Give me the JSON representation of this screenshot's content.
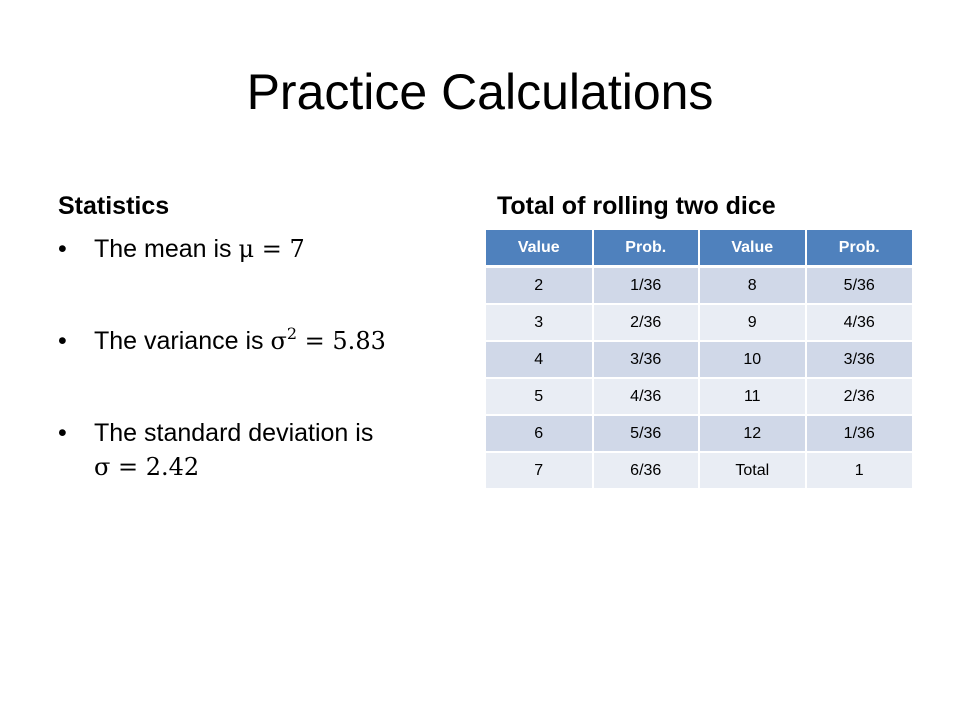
{
  "title": "Practice Calculations",
  "left": {
    "heading": "Statistics",
    "bullet_marker": "•",
    "bullets": [
      {
        "text": "The mean is ",
        "math": "μ = 7"
      },
      {
        "text": "The variance is ",
        "math_base": "σ",
        "math_sup": "2",
        "math_rest": " = 5.83"
      },
      {
        "text": "The standard deviation is",
        "math": "σ = 2.42"
      }
    ]
  },
  "right": {
    "heading": "Total of rolling two dice",
    "table": {
      "headers": [
        "Value",
        "Prob.",
        "Value",
        "Prob."
      ],
      "rows": [
        [
          "2",
          "1/36",
          "8",
          "5/36"
        ],
        [
          "3",
          "2/36",
          "9",
          "4/36"
        ],
        [
          "4",
          "3/36",
          "10",
          "3/36"
        ],
        [
          "5",
          "4/36",
          "11",
          "2/36"
        ],
        [
          "6",
          "5/36",
          "12",
          "1/36"
        ],
        [
          "7",
          "6/36",
          "Total",
          "1"
        ]
      ]
    }
  },
  "colors": {
    "header_bg": "#4f81bd",
    "row_odd_bg": "#d0d8e8",
    "row_even_bg": "#e9edf4"
  }
}
